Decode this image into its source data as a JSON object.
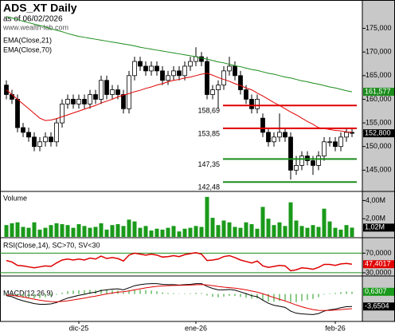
{
  "chart_data": [
    {
      "type": "candlestick",
      "title": "ADS_XT Daily",
      "subtitle": "as of 06/02/2026",
      "watermark": "www.wealth-lab.com",
      "categories": [
        null,
        null,
        null,
        null,
        null,
        null,
        null,
        null,
        null,
        null,
        null,
        null,
        null,
        "dic-25",
        null,
        null,
        null,
        null,
        null,
        null,
        null,
        null,
        null,
        null,
        null,
        null,
        null,
        null,
        null,
        null,
        null,
        null,
        null,
        null,
        "ene-26",
        null,
        null,
        null,
        null,
        null,
        null,
        null,
        null,
        null,
        null,
        null,
        null,
        null,
        null,
        null,
        null,
        null,
        null,
        null,
        null,
        null,
        null,
        null,
        null,
        "feb-26",
        null,
        null,
        null
      ],
      "open": [
        163,
        161,
        160,
        154,
        153,
        152,
        150,
        151,
        152,
        151,
        155,
        159,
        160,
        159,
        160,
        159,
        161,
        160,
        164,
        161,
        162,
        161,
        158,
        165,
        168,
        167,
        166,
        167,
        166,
        164,
        165,
        166,
        165,
        167,
        168,
        169,
        168,
        161,
        162,
        163,
        166,
        167,
        165,
        162,
        160,
        158,
        156,
        153,
        151,
        152,
        153,
        152,
        145,
        146,
        148,
        147,
        146,
        148,
        151,
        151,
        150,
        152,
        153
      ],
      "high": [
        164,
        162,
        161,
        155,
        154,
        153,
        152,
        153,
        153,
        156,
        160,
        161,
        161,
        161,
        161,
        162,
        162,
        165,
        165,
        163,
        163,
        162,
        166,
        169,
        169,
        168,
        168,
        168,
        167,
        166,
        167,
        167,
        168,
        169,
        171,
        170,
        169,
        163,
        164,
        167,
        169,
        168,
        166,
        163,
        161,
        161,
        157,
        154,
        153,
        157,
        154,
        153,
        148,
        149,
        149,
        148,
        149,
        152,
        152,
        152,
        153,
        154,
        154
      ],
      "low": [
        160,
        159,
        153,
        152,
        151,
        149,
        149,
        150,
        150,
        150,
        154,
        158,
        158,
        158,
        158,
        158,
        159,
        159,
        160,
        160,
        160,
        157,
        157,
        164,
        166,
        165,
        165,
        165,
        163,
        163,
        164,
        164,
        164,
        166,
        167,
        167,
        160,
        160,
        158,
        162,
        165,
        164,
        161,
        159,
        157,
        157,
        152,
        150,
        150,
        151,
        151,
        143,
        144,
        145,
        146,
        144,
        145,
        147,
        150,
        149,
        149,
        151,
        152
      ],
      "close": [
        161,
        160,
        154,
        153,
        152,
        150,
        151,
        152,
        151,
        155,
        159,
        160,
        159,
        160,
        159,
        161,
        160,
        164,
        161,
        162,
        161,
        158,
        165,
        168,
        167,
        166,
        167,
        166,
        164,
        165,
        166,
        165,
        167,
        168,
        169,
        168,
        161,
        162,
        163,
        166,
        167,
        165,
        162,
        160,
        158,
        160,
        153,
        151,
        152,
        153,
        152,
        145,
        146,
        148,
        147,
        146,
        148,
        151,
        151,
        150,
        152,
        153,
        152.8
      ],
      "series": [
        {
          "name": "EMA(Close,21)",
          "color": "#e00000",
          "values": [
            162,
            161,
            160,
            159,
            158,
            157,
            156,
            155.5,
            155.6,
            155.9,
            156.3,
            156.7,
            157.1,
            157.5,
            157.9,
            158.3,
            158.7,
            159.2,
            159.6,
            160.0,
            160.5,
            160.9,
            161.2,
            161.6,
            161.9,
            162.3,
            162.6,
            163.0,
            163.3,
            163.7,
            164.0,
            164.2,
            164.5,
            164.7,
            165.0,
            165.3,
            165.5,
            165.1,
            164.6,
            164.2,
            163.8,
            163.3,
            162.9,
            162.4,
            162.0,
            161.3,
            160.7,
            160.0,
            159.3,
            158.7,
            158.0,
            157.3,
            156.7,
            156.0,
            155.3,
            154.7,
            154.0,
            153.8,
            153.6,
            153.4,
            153.3,
            153.1,
            153.0
          ]
        },
        {
          "name": "EMA(Close,70)",
          "color": "#1a8c1a",
          "values": [
            177.5,
            177.2,
            176.9,
            176.5,
            176.2,
            175.9,
            175.6,
            175.3,
            174.9,
            174.6,
            174.3,
            173.9,
            173.6,
            173.3,
            173.1,
            172.9,
            172.7,
            172.5,
            172.3,
            172.1,
            171.9,
            171.7,
            171.5,
            171.3,
            171.0,
            170.8,
            170.6,
            170.4,
            170.2,
            170.0,
            169.8,
            169.6,
            169.4,
            169.2,
            169.0,
            168.7,
            168.5,
            168.2,
            167.9,
            167.7,
            167.4,
            167.1,
            166.9,
            166.6,
            166.3,
            166.1,
            165.8,
            165.5,
            165.3,
            165.0,
            164.7,
            164.5,
            164.2,
            163.9,
            163.7,
            163.4,
            163.2,
            162.9,
            162.6,
            162.4,
            162.1,
            161.8,
            161.577
          ]
        }
      ],
      "ylim": [
        140.5,
        181
      ],
      "yticks": [
        {
          "value": 175,
          "label": "175,000"
        },
        {
          "value": 170,
          "label": "170,000"
        },
        {
          "value": 165,
          "label": "165,000"
        },
        {
          "value": 160,
          "label": "160,000"
        },
        {
          "value": 155,
          "label": "155,000"
        },
        {
          "value": 150,
          "label": "150,000"
        },
        {
          "value": 145,
          "label": "145,000"
        }
      ],
      "levels": [
        {
          "value": 158.69,
          "label": "158,69",
          "color": "#e00000"
        },
        {
          "value": 153.85,
          "label": "153,85",
          "color": "#e00000"
        },
        {
          "value": 147.35,
          "label": "147,35",
          "color": "#1a8c1a"
        },
        {
          "value": 142.48,
          "label": "142,48",
          "color": "#1a8c1a"
        }
      ],
      "last_labels": [
        {
          "value": 161.577,
          "label": "161,577",
          "color": "#1a8c1a"
        },
        {
          "value": 152.8,
          "label": "152,800",
          "color": "#000000"
        }
      ]
    },
    {
      "type": "bar",
      "title": "Volume",
      "color": "#1a9a1a",
      "values": [
        1300000,
        1500000,
        1600000,
        1100000,
        1000000,
        1600000,
        800000,
        1000000,
        1300000,
        1500000,
        1400000,
        1300000,
        1000000,
        1400000,
        1200000,
        1000000,
        1100000,
        1500000,
        800000,
        1300000,
        1400000,
        1200000,
        1900000,
        1700000,
        1000000,
        1200000,
        700000,
        900000,
        800000,
        1000000,
        1200000,
        600000,
        900000,
        1000000,
        1200000,
        1100000,
        4400000,
        2100000,
        1300000,
        1800000,
        1600000,
        1100000,
        1000000,
        1600000,
        1400000,
        900000,
        3300000,
        2000000,
        1300000,
        1600000,
        1200000,
        3800000,
        1800000,
        1200000,
        1000000,
        1300000,
        1100000,
        3100000,
        1700000,
        1000000,
        800000,
        1300000,
        1020000
      ],
      "ylim": [
        0,
        5000000
      ],
      "yticks": [
        {
          "value": 4000000,
          "label": "4,00M"
        },
        {
          "value": 2000000,
          "label": "2,00M"
        }
      ],
      "last_labels": [
        {
          "value": 1020000,
          "label": "1,02M",
          "color": "#000000"
        }
      ]
    },
    {
      "type": "line",
      "title": "RSI(Close,14), SC>70, SV<30",
      "color": "#e00000",
      "grid_color": "#1a8c1a",
      "values": [
        55,
        52,
        45,
        44,
        42,
        40,
        42,
        44,
        43,
        50,
        56,
        58,
        56,
        58,
        56,
        60,
        58,
        64,
        59,
        61,
        59,
        54,
        66,
        70,
        68,
        66,
        68,
        66,
        62,
        63,
        65,
        63,
        67,
        69,
        71,
        68,
        55,
        56,
        58,
        63,
        65,
        61,
        56,
        53,
        50,
        54,
        44,
        41,
        43,
        45,
        44,
        34,
        36,
        40,
        39,
        37,
        41,
        47,
        47,
        45,
        48,
        49,
        47.4017
      ],
      "ylim": [
        25,
        100
      ],
      "yticks": [
        {
          "value": 70,
          "label": "70,0000"
        },
        {
          "value": 30,
          "label": "30,0000"
        }
      ],
      "last_labels": [
        {
          "value": 47.4017,
          "label": "47,4017",
          "color": "#e00000"
        }
      ]
    },
    {
      "type": "macd",
      "title": "MACD(12,26,9)",
      "series": [
        {
          "color": "#000000",
          "values": [
            -0.5,
            -0.8,
            -1.5,
            -2.0,
            -2.4,
            -2.8,
            -3.0,
            -3.0,
            -2.9,
            -2.5,
            -1.8,
            -1.2,
            -0.8,
            -0.4,
            -0.1,
            0.3,
            0.5,
            1.0,
            1.2,
            1.4,
            1.5,
            1.2,
            1.8,
            2.4,
            2.7,
            2.9,
            3.0,
            3.0,
            2.8,
            2.7,
            2.7,
            2.6,
            2.7,
            2.8,
            3.0,
            3.0,
            2.2,
            1.6,
            1.2,
            1.2,
            1.3,
            1.1,
            0.6,
            0.1,
            -0.5,
            -0.8,
            -1.8,
            -2.7,
            -3.3,
            -3.6,
            -3.9,
            -5.0,
            -5.6,
            -5.8,
            -5.9,
            -6.0,
            -5.7,
            -5.0,
            -4.6,
            -4.4,
            -4.0,
            -3.7,
            -3.6504
          ]
        },
        {
          "color": "#e00000",
          "values": [
            -0.3,
            -0.4,
            -0.62,
            -0.9,
            -1.2,
            -1.52,
            -1.82,
            -2.06,
            -2.23,
            -2.28,
            -2.18,
            -1.98,
            -1.74,
            -1.47,
            -1.2,
            -0.9,
            -0.62,
            -0.3,
            0,
            0.28,
            0.52,
            0.66,
            0.89,
            1.19,
            1.49,
            1.77,
            2.02,
            2.22,
            2.34,
            2.41,
            2.47,
            2.5,
            2.54,
            2.59,
            2.67,
            2.74,
            2.63,
            2.42,
            2.18,
            1.98,
            1.84,
            1.69,
            1.47,
            1.2,
            0.86,
            0.53,
            0.06,
            -0.49,
            -1.05,
            -1.56,
            -2.03,
            -2.62,
            -3.22,
            -3.74,
            -4.17,
            -4.54,
            -4.77,
            -4.82,
            -4.78,
            -4.7,
            -4.56,
            -4.39,
            -4.2811
          ]
        }
      ],
      "histogram": {
        "color": "#1a9a1a",
        "values": [
          -0.2,
          -0.4,
          -0.88,
          -1.1,
          -1.2,
          -1.28,
          -1.18,
          -0.94,
          -0.67,
          -0.22,
          0.38,
          0.78,
          0.94,
          1.07,
          1.1,
          1.2,
          1.12,
          1.3,
          1.2,
          1.12,
          0.98,
          0.54,
          0.91,
          1.21,
          1.21,
          1.13,
          0.98,
          0.78,
          0.46,
          0.29,
          0.23,
          0.1,
          0.16,
          0.21,
          0.33,
          0.26,
          -0.43,
          -0.82,
          -0.98,
          -0.78,
          -0.54,
          -0.59,
          -0.87,
          -1.1,
          -1.36,
          -1.33,
          -1.86,
          -2.21,
          -2.25,
          -2.04,
          -1.87,
          -2.38,
          -2.38,
          -2.06,
          -1.73,
          -1.46,
          -0.93,
          -0.18,
          0.18,
          0.3,
          0.56,
          0.69,
          0.6307
        ]
      },
      "ylim": [
        -8,
        5
      ],
      "last_labels": [
        {
          "value": 0.6307,
          "label": "0,6307",
          "color": "#1a9a1a"
        },
        {
          "value": -3.6504,
          "label": "-3,6504",
          "color": "#000000"
        }
      ]
    }
  ]
}
